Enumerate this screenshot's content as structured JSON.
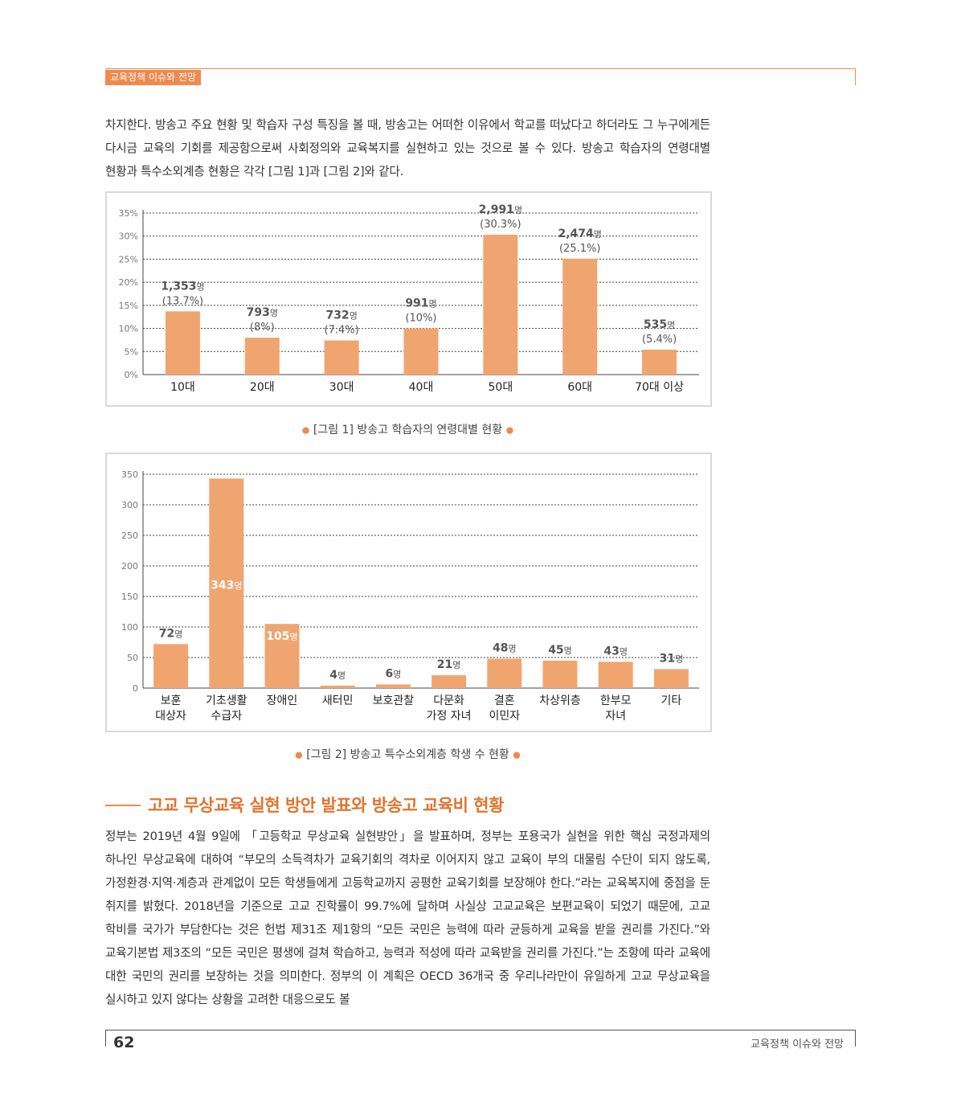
{
  "header": {
    "title": "교육정책 이슈와 전망"
  },
  "intro_paragraph": "차지한다. 방송고 주요 현황 및 학습자 구성 특징을 볼 때, 방송고는 어떠한 이유에서 학교를 떠났다고 하더라도 그 누구에게든 다시금 교육의 기회를 제공함으로써 사회정의와 교육복지를 실현하고 있는 것으로 볼 수 있다. 방송고 학습자의 연령대별 현황과 특수소외계층 현황은 각각 [그림 1]과 [그림 2]와 같다.",
  "chart_data": [
    {
      "type": "bar",
      "title": "[그림 1] 방송고 학습자의 연령대별 현황",
      "categories": [
        "10대",
        "20대",
        "30대",
        "40대",
        "50대",
        "60대",
        "70대 이상"
      ],
      "values": [
        13.7,
        8,
        7.4,
        10,
        30.3,
        25.1,
        5.4
      ],
      "counts": [
        "1,353",
        "793",
        "732",
        "991",
        "2,991",
        "2,474",
        "535"
      ],
      "pct_labels": [
        "(13.7%)",
        "(8%)",
        "(7.4%)",
        "(10%)",
        "(30.3%)",
        "(25.1%)",
        "(5.4%)"
      ],
      "unit": "명",
      "yticks": [
        "0%",
        "5%",
        "10%",
        "15%",
        "20%",
        "25%",
        "30%",
        "35%"
      ],
      "ylim": [
        0,
        35
      ],
      "grid": true,
      "bar_color": "#f0a571"
    },
    {
      "type": "bar",
      "title": "[그림 2] 방송고 특수소외계층 학생 수 현황",
      "categories": [
        [
          "보훈",
          "대상자"
        ],
        [
          "기초생활",
          "수급자"
        ],
        [
          "장애인"
        ],
        [
          "새터민"
        ],
        [
          "보호관찰"
        ],
        [
          "다문화",
          "가정 자녀"
        ],
        [
          "결혼",
          "이민자"
        ],
        [
          "차상위층"
        ],
        [
          "한부모",
          "자녀"
        ],
        [
          "기타"
        ]
      ],
      "values": [
        72,
        343,
        105,
        4,
        6,
        21,
        48,
        45,
        43,
        31
      ],
      "unit": "명",
      "yticks": [
        "0",
        "50",
        "100",
        "150",
        "200",
        "250",
        "300",
        "350"
      ],
      "ylim": [
        0,
        350
      ],
      "grid": true,
      "bar_color": "#f0a571"
    }
  ],
  "figure1_caption": "[그림 1] 방송고 학습자의 연령대별 현황",
  "figure2_caption": "[그림 2] 방송고 특수소외계층 학생 수 현황",
  "section": {
    "title": "고교 무상교육 실현 방안 발표와 방송고 교육비 현황"
  },
  "body_paragraph": "정부는 2019년 4월 9일에 「고등학교 무상교육 실현방안」을 발표하며, 정부는 포용국가 실현을 위한 핵심 국정과제의 하나인 무상교육에 대하여 “부모의 소득격차가 교육기회의 격차로 이어지지 않고 교육이 부의 대물림 수단이 되지 않도록, 가정환경·지역·계층과 관계없이 모든 학생들에게 고등학교까지 공평한 교육기회를 보장해야 한다.”라는 교육복지에 중점을 둔 취지를 밝혔다. 2018년을 기준으로 고교 진학률이 99.7%에 달하며 사실상 고교교육은 보편교육이 되었기 때문에, 고교 학비를 국가가 부담한다는 것은 헌법 제31조 제1항의 “모든 국민은 능력에 따라 균등하게 교육을 받을 권리를 가진다.”와 교육기본법 제3조의 “모든 국민은 평생에 걸쳐 학습하고, 능력과 적성에 따라 교육받을 권리를 가진다.”는 조항에 따라 교육에 대한 국민의 권리를 보장하는 것을 의미한다. 정부의 이 계획은 OECD 36개국 중 우리나라만이 유일하게 고교 무상교육을 실시하고 있지 않다는 상황을 고려한 대응으로도 볼",
  "footer": {
    "page_number": "62",
    "title": "교육정책 이슈와 전망"
  }
}
